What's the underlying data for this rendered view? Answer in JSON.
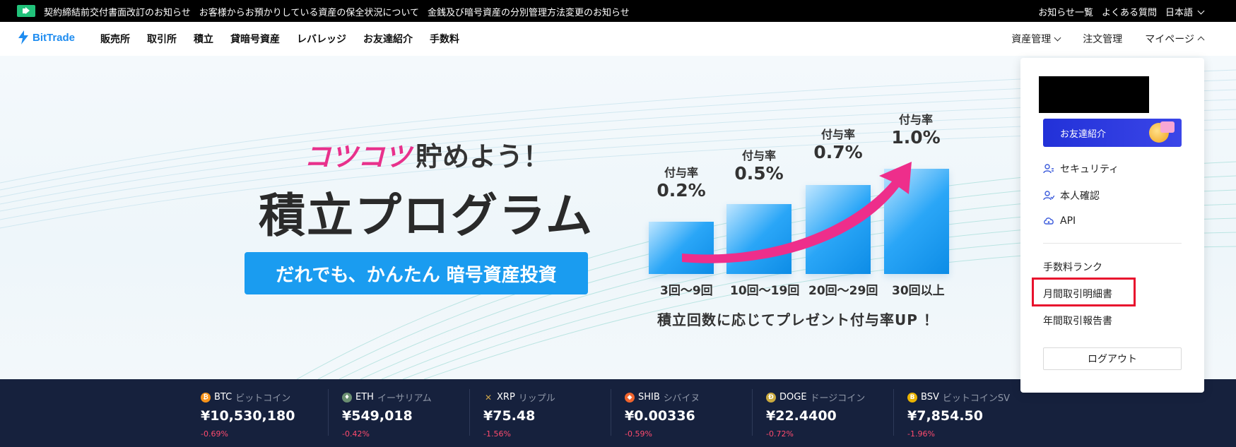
{
  "notice_bar": {
    "announcements": [
      "契約締結前交付書面改訂のお知らせ",
      "お客様からお預かりしている資産の保全状況について",
      "金銭及び暗号資産の分別管理方法変更のお知らせ"
    ],
    "links": [
      "お知らせ一覧",
      "よくある質問",
      "日本語"
    ]
  },
  "header": {
    "logo_text": "BitTrade",
    "nav": [
      "販売所",
      "取引所",
      "積立",
      "貸暗号資産",
      "レバレッジ",
      "お友達紹介",
      "手数料"
    ],
    "right_nav": {
      "assets": "資産管理",
      "orders": "注文管理",
      "mypage": "マイページ"
    }
  },
  "hero": {
    "sub_pink": "コツコツ",
    "sub_rest": "貯めよう！",
    "title": "積立プログラム",
    "button": "だれでも、かんたん 暗号資産投資",
    "rates": [
      {
        "label": "付与率",
        "value": "0.2%",
        "count": "3回～9回"
      },
      {
        "label": "付与率",
        "value": "0.5%",
        "count": "10回～19回"
      },
      {
        "label": "付与率",
        "value": "0.7%",
        "count": "20回～29回"
      },
      {
        "label": "付与率",
        "value": "1.0%",
        "count": "30回以上"
      }
    ],
    "footnote": "積立回数に応じてプレゼント付与率UP ！"
  },
  "ticker": [
    {
      "symbol": "BTC",
      "name": "ビットコイン",
      "price": "¥10,530,180",
      "change": "-0.69%",
      "color": "#f7931a",
      "icon": "₿"
    },
    {
      "symbol": "ETH",
      "name": "イーサリアム",
      "price": "¥549,018",
      "change": "-0.42%",
      "color": "#6b8f71",
      "icon": "♦"
    },
    {
      "symbol": "XRP",
      "name": "リップル",
      "price": "¥75.48",
      "change": "-1.56%",
      "color": "#c8a24a",
      "icon": "✕"
    },
    {
      "symbol": "SHIB",
      "name": "シバイヌ",
      "price": "¥0.00336",
      "change": "-0.59%",
      "color": "#f0642d",
      "icon": "◆"
    },
    {
      "symbol": "DOGE",
      "name": "ドージコイン",
      "price": "¥22.4400",
      "change": "-0.72%",
      "color": "#c9a93f",
      "icon": "Ð"
    },
    {
      "symbol": "BSV",
      "name": "ビットコインSV",
      "price": "¥7,854.50",
      "change": "-1.96%",
      "color": "#eab300",
      "icon": "B"
    }
  ],
  "dropdown": {
    "invite": "お友達紹介",
    "items": [
      "セキュリティ",
      "本人確認",
      "API"
    ],
    "reports": [
      "手数料ランク",
      "月間取引明細書",
      "年間取引報告書"
    ],
    "logout": "ログアウト"
  }
}
